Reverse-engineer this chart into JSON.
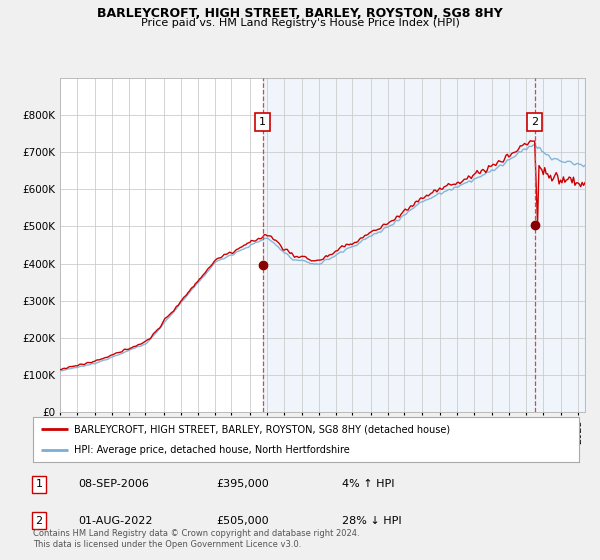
{
  "title": "BARLEYCROFT, HIGH STREET, BARLEY, ROYSTON, SG8 8HY",
  "subtitle": "Price paid vs. HM Land Registry's House Price Index (HPI)",
  "legend_line1": "BARLEYCROFT, HIGH STREET, BARLEY, ROYSTON, SG8 8HY (detached house)",
  "legend_line2": "HPI: Average price, detached house, North Hertfordshire",
  "annotation1": {
    "label": "1",
    "date": "08-SEP-2006",
    "price": "£395,000",
    "pct": "4% ↑ HPI"
  },
  "annotation2": {
    "label": "2",
    "date": "01-AUG-2022",
    "price": "£505,000",
    "pct": "28% ↓ HPI"
  },
  "footer": "Contains HM Land Registry data © Crown copyright and database right 2024.\nThis data is licensed under the Open Government Licence v3.0.",
  "line_color_red": "#cc0000",
  "line_color_blue": "#7aaed6",
  "shade_color": "#ddeeff",
  "dashed_color": "#dd4444",
  "bg_color": "#f0f0f0",
  "plot_bg": "#ffffff",
  "grid_color": "#cccccc",
  "ylim": [
    0,
    900000
  ],
  "yticks": [
    0,
    100000,
    200000,
    300000,
    400000,
    500000,
    600000,
    700000,
    800000
  ],
  "ytick_labels": [
    "£0",
    "£100K",
    "£200K",
    "£300K",
    "£400K",
    "£500K",
    "£600K",
    "£700K",
    "£800K"
  ],
  "sale1_year": 2006.75,
  "sale2_year": 2022.583,
  "sale1_price": 395000,
  "sale2_price": 505000,
  "start_year": 1995,
  "end_year": 2025.5
}
